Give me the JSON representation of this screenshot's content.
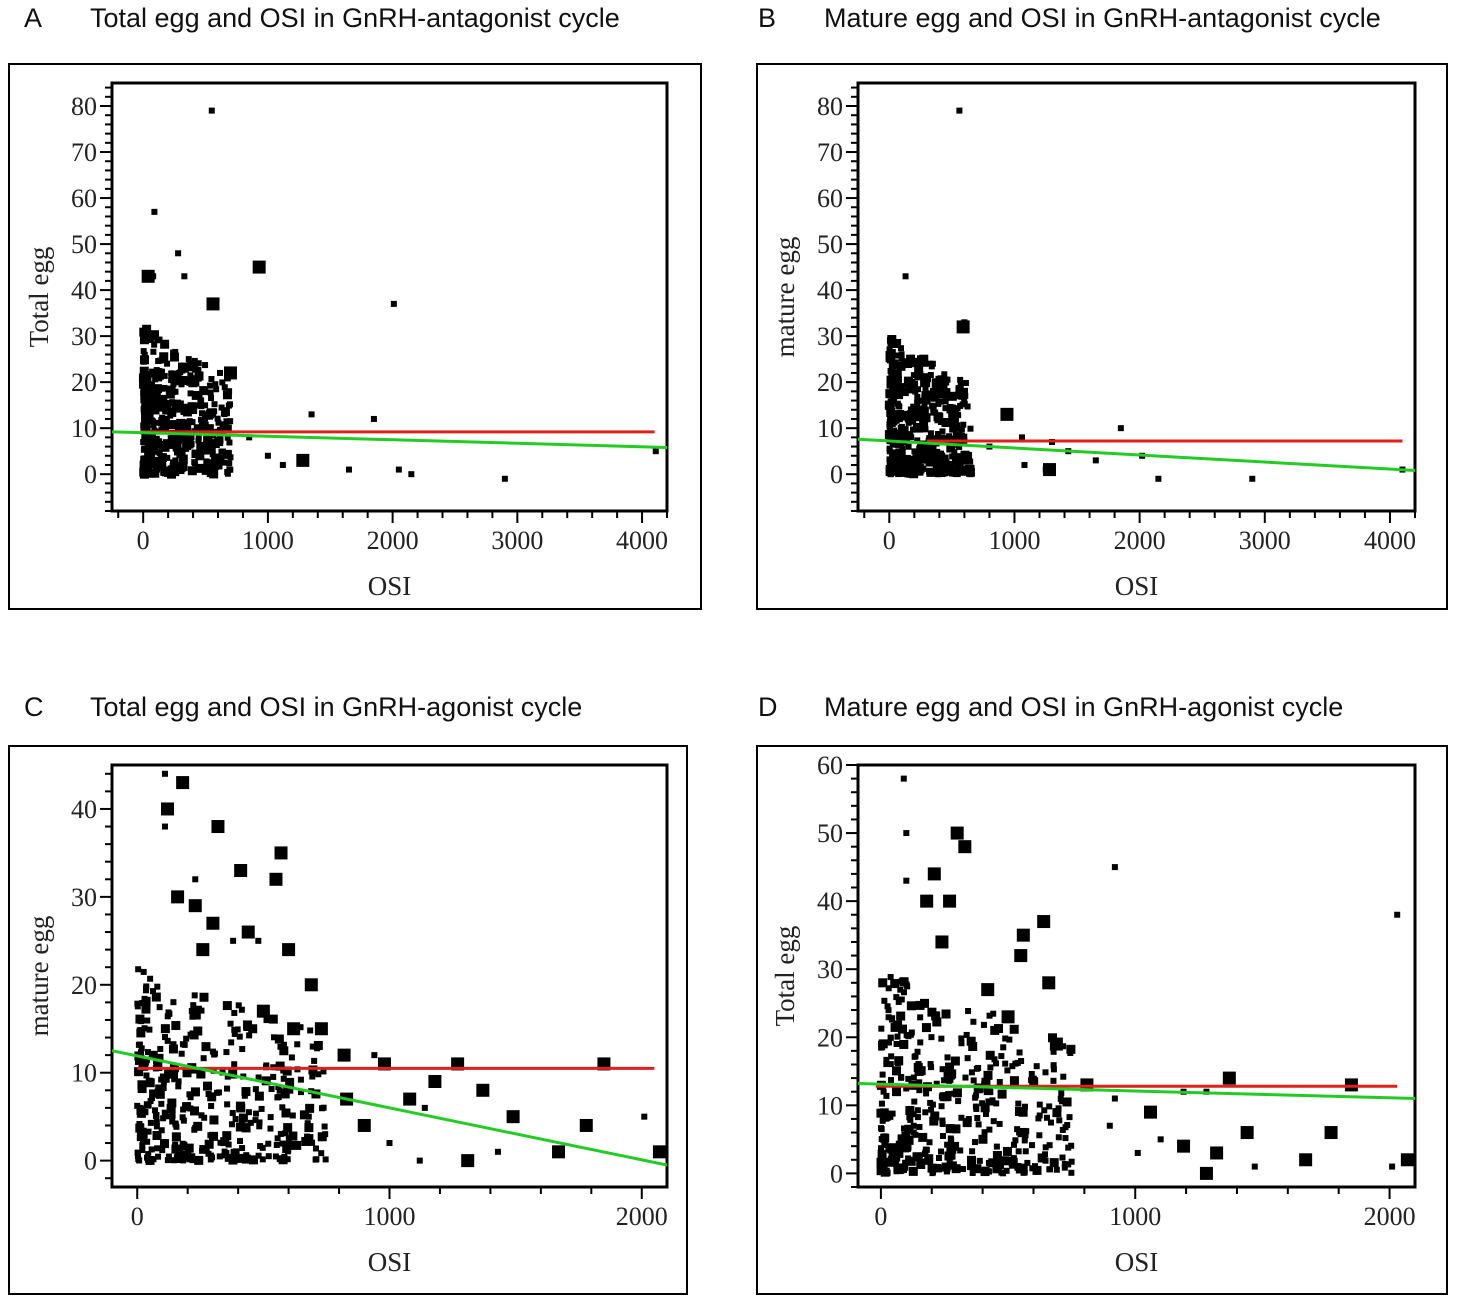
{
  "colors": {
    "mean_line": "#e0201b",
    "fit_line": "#22cc22",
    "points": "#000000"
  },
  "charts": [
    {
      "letter": "A",
      "title": "Total egg and OSI in GnRH-antagonist cycle",
      "xlabel": "OSI",
      "ylabel": "Total egg",
      "xlim": [
        -250,
        4200
      ],
      "ylim": [
        -8,
        85
      ],
      "xticks": [
        "0",
        "1000",
        "2000",
        "3000",
        "4000"
      ],
      "yticks": [
        "0",
        "10",
        "20",
        "30",
        "40",
        "50",
        "60",
        "70",
        "80"
      ],
      "mean_line": {
        "x": [
          -20,
          4100
        ],
        "y": [
          9.2,
          9.2
        ]
      },
      "fit_line": {
        "x": [
          -250,
          4200
        ],
        "y": [
          9.2,
          5.8
        ]
      },
      "cluster": {
        "x_range": [
          0,
          700
        ],
        "y_range": [
          0,
          32
        ],
        "count": 450,
        "seed": 11
      },
      "outliers": [
        [
          550,
          79
        ],
        [
          90,
          57
        ],
        [
          2010,
          37
        ],
        [
          930,
          45
        ],
        [
          80,
          43
        ],
        [
          560,
          37
        ],
        [
          280,
          48
        ],
        [
          1850,
          12
        ],
        [
          1350,
          13
        ],
        [
          2050,
          1
        ],
        [
          2150,
          0
        ],
        [
          2900,
          -1
        ],
        [
          4110,
          5
        ],
        [
          1280,
          3
        ],
        [
          1120,
          2
        ],
        [
          1000,
          4
        ],
        [
          1650,
          1
        ],
        [
          850,
          8
        ],
        [
          700,
          22
        ],
        [
          330,
          43
        ]
      ],
      "big_points": [
        [
          930,
          45
        ],
        [
          560,
          37
        ],
        [
          40,
          43
        ],
        [
          700,
          22
        ],
        [
          1280,
          3
        ]
      ]
    },
    {
      "letter": "B",
      "title": "Mature egg and OSI in GnRH-antagonist cycle",
      "xlabel": "OSI",
      "ylabel": "mature egg",
      "xlim": [
        -250,
        4200
      ],
      "ylim": [
        -8,
        85
      ],
      "xticks": [
        "0",
        "1000",
        "2000",
        "3000",
        "4000"
      ],
      "yticks": [
        "0",
        "10",
        "20",
        "30",
        "40",
        "50",
        "60",
        "70",
        "80"
      ],
      "mean_line": {
        "x": [
          300,
          4100
        ],
        "y": [
          7.2,
          7.2
        ]
      },
      "fit_line": {
        "x": [
          -250,
          4200
        ],
        "y": [
          7.6,
          0.8
        ]
      },
      "cluster": {
        "x_range": [
          0,
          650
        ],
        "y_range": [
          0,
          30
        ],
        "count": 450,
        "seed": 23
      },
      "outliers": [
        [
          560,
          79
        ],
        [
          130,
          43
        ],
        [
          600,
          33
        ],
        [
          940,
          13
        ],
        [
          1850,
          10
        ],
        [
          1300,
          7
        ],
        [
          1060,
          8
        ],
        [
          2020,
          4
        ],
        [
          2150,
          -1
        ],
        [
          2900,
          -1
        ],
        [
          4100,
          1
        ],
        [
          1250,
          1
        ],
        [
          1650,
          3
        ],
        [
          1080,
          2
        ],
        [
          800,
          6
        ],
        [
          1430,
          5
        ]
      ],
      "big_points": [
        [
          30,
          20
        ],
        [
          590,
          32
        ],
        [
          940,
          13
        ],
        [
          1280,
          1
        ]
      ]
    },
    {
      "letter": "C",
      "title": "Total egg and OSI in GnRH-agonist cycle",
      "xlabel": "OSI",
      "ylabel": "mature egg",
      "xlim": [
        -100,
        2100
      ],
      "ylim": [
        -3,
        45
      ],
      "xticks": [
        "0",
        "1000",
        "2000"
      ],
      "yticks": [
        "0",
        "10",
        "20",
        "30",
        "40"
      ],
      "mean_line": {
        "x": [
          0,
          2050
        ],
        "y": [
          10.5,
          10.5
        ]
      },
      "fit_line": {
        "x": [
          -100,
          2100
        ],
        "y": [
          12.5,
          -0.5
        ]
      },
      "cluster": {
        "x_range": [
          0,
          750
        ],
        "y_range": [
          0,
          22
        ],
        "count": 380,
        "seed": 37
      },
      "outliers": [
        [
          110,
          44
        ],
        [
          180,
          43
        ],
        [
          120,
          40
        ],
        [
          320,
          38
        ],
        [
          110,
          38
        ],
        [
          410,
          33
        ],
        [
          570,
          35
        ],
        [
          550,
          32
        ],
        [
          230,
          32
        ],
        [
          440,
          26
        ],
        [
          480,
          25
        ],
        [
          380,
          25
        ],
        [
          600,
          24
        ],
        [
          690,
          20
        ],
        [
          730,
          15
        ],
        [
          820,
          12
        ],
        [
          940,
          12
        ],
        [
          980,
          11
        ],
        [
          1270,
          11
        ],
        [
          1850,
          11
        ],
        [
          1180,
          9
        ],
        [
          1370,
          8
        ],
        [
          1080,
          7
        ],
        [
          1140,
          6
        ],
        [
          1490,
          5
        ],
        [
          1780,
          4
        ],
        [
          1670,
          1
        ],
        [
          2070,
          1
        ],
        [
          2010,
          5
        ],
        [
          1000,
          2
        ],
        [
          1120,
          0
        ],
        [
          1310,
          0
        ],
        [
          1430,
          1
        ],
        [
          900,
          4
        ],
        [
          830,
          7
        ],
        [
          680,
          5
        ]
      ],
      "big_points": [
        [
          180,
          43
        ],
        [
          120,
          40
        ],
        [
          320,
          38
        ],
        [
          410,
          33
        ],
        [
          570,
          35
        ],
        [
          550,
          32
        ],
        [
          440,
          26
        ],
        [
          600,
          24
        ],
        [
          690,
          20
        ],
        [
          730,
          15
        ],
        [
          820,
          12
        ],
        [
          980,
          11
        ],
        [
          1270,
          11
        ],
        [
          1850,
          11
        ],
        [
          1180,
          9
        ],
        [
          1370,
          8
        ],
        [
          1080,
          7
        ],
        [
          1490,
          5
        ],
        [
          1780,
          4
        ],
        [
          1670,
          1
        ],
        [
          2070,
          1
        ],
        [
          1310,
          0
        ],
        [
          900,
          4
        ],
        [
          830,
          7
        ],
        [
          230,
          29
        ],
        [
          300,
          27
        ],
        [
          160,
          30
        ],
        [
          260,
          24
        ],
        [
          500,
          17
        ],
        [
          620,
          15
        ]
      ]
    },
    {
      "letter": "D",
      "title": "Mature egg and OSI in GnRH-agonist cycle",
      "xlabel": "OSI",
      "ylabel": "Total egg",
      "xlim": [
        -90,
        2100
      ],
      "ylim": [
        -2,
        60
      ],
      "xticks": [
        "0",
        "1000",
        "2000"
      ],
      "yticks": [
        "0",
        "10",
        "20",
        "30",
        "40",
        "50",
        "60"
      ],
      "mean_line": {
        "x": [
          -20,
          2030
        ],
        "y": [
          12.8,
          12.8
        ]
      },
      "fit_line": {
        "x": [
          -90,
          2100
        ],
        "y": [
          13.2,
          11.0
        ]
      },
      "cluster": {
        "x_range": [
          0,
          750
        ],
        "y_range": [
          0,
          30
        ],
        "count": 420,
        "seed": 53
      },
      "outliers": [
        [
          90,
          58
        ],
        [
          100,
          50
        ],
        [
          300,
          50
        ],
        [
          330,
          48
        ],
        [
          920,
          45
        ],
        [
          2030,
          38
        ],
        [
          100,
          43
        ],
        [
          210,
          44
        ],
        [
          270,
          40
        ],
        [
          640,
          37
        ],
        [
          560,
          35
        ],
        [
          550,
          32
        ],
        [
          660,
          28
        ],
        [
          690,
          19
        ],
        [
          810,
          13
        ],
        [
          920,
          11
        ],
        [
          1060,
          9
        ],
        [
          1190,
          12
        ],
        [
          1280,
          12
        ],
        [
          1370,
          14
        ],
        [
          1850,
          13
        ],
        [
          1440,
          6
        ],
        [
          1770,
          6
        ],
        [
          1670,
          2
        ],
        [
          2070,
          2
        ],
        [
          1280,
          0
        ],
        [
          1190,
          4
        ],
        [
          1100,
          5
        ],
        [
          1010,
          3
        ],
        [
          1320,
          3
        ],
        [
          1470,
          1
        ],
        [
          2010,
          1
        ],
        [
          900,
          7
        ]
      ],
      "big_points": [
        [
          300,
          50
        ],
        [
          330,
          48
        ],
        [
          210,
          44
        ],
        [
          270,
          40
        ],
        [
          640,
          37
        ],
        [
          560,
          35
        ],
        [
          550,
          32
        ],
        [
          660,
          28
        ],
        [
          690,
          19
        ],
        [
          810,
          13
        ],
        [
          1060,
          9
        ],
        [
          1370,
          14
        ],
        [
          1850,
          13
        ],
        [
          1440,
          6
        ],
        [
          1770,
          6
        ],
        [
          1670,
          2
        ],
        [
          2070,
          2
        ],
        [
          1280,
          0
        ],
        [
          1190,
          4
        ],
        [
          1320,
          3
        ],
        [
          180,
          40
        ],
        [
          240,
          34
        ],
        [
          420,
          27
        ],
        [
          500,
          23
        ]
      ]
    }
  ]
}
